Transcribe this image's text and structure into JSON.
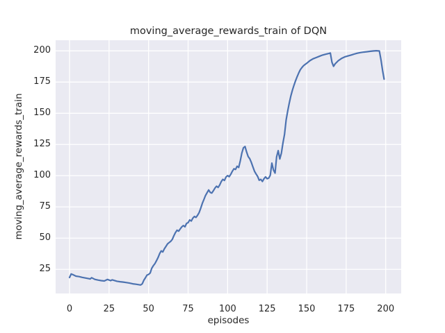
{
  "chart_data": {
    "type": "line",
    "title": "moving_average_rewards_train of DQN",
    "xlabel": "episodes",
    "ylabel": "moving_average_rewards_train",
    "x_ticks": [
      0,
      25,
      50,
      75,
      100,
      125,
      150,
      175,
      200
    ],
    "y_ticks": [
      25,
      50,
      75,
      100,
      125,
      150,
      175,
      200
    ],
    "xlim": [
      -8.8,
      209.8
    ],
    "ylim": [
      5.7,
      208.5
    ],
    "grid": true,
    "legend": "none",
    "style": {
      "figure_bg": "#ffffff",
      "axes_bg": "#eaeaf2",
      "grid_color": "#ffffff",
      "line_color": "#4c72b0",
      "text_color": "#262626",
      "line_width": 2.2
    },
    "series": [
      {
        "name": "moving_average_rewards_train",
        "points": [
          [
            0,
            18.5
          ],
          [
            1,
            21.3
          ],
          [
            2,
            20.8
          ],
          [
            4,
            19.6
          ],
          [
            6,
            19.2
          ],
          [
            8,
            18.6
          ],
          [
            10,
            18.1
          ],
          [
            12,
            17.6
          ],
          [
            13,
            17.3
          ],
          [
            14,
            18.3
          ],
          [
            16,
            17.0
          ],
          [
            18,
            16.4
          ],
          [
            20,
            16.0
          ],
          [
            22,
            15.7
          ],
          [
            24,
            16.9
          ],
          [
            26,
            16.0
          ],
          [
            27,
            16.6
          ],
          [
            28,
            16.2
          ],
          [
            30,
            15.5
          ],
          [
            32,
            15.1
          ],
          [
            34,
            14.8
          ],
          [
            36,
            14.4
          ],
          [
            38,
            14.0
          ],
          [
            40,
            13.4
          ],
          [
            42,
            13.1
          ],
          [
            44,
            12.7
          ],
          [
            45,
            12.5
          ],
          [
            46,
            13.4
          ],
          [
            47,
            16.3
          ],
          [
            48,
            18.2
          ],
          [
            49,
            20.4
          ],
          [
            50,
            20.9
          ],
          [
            51,
            22.1
          ],
          [
            52,
            25.8
          ],
          [
            53,
            27.9
          ],
          [
            54,
            29.6
          ],
          [
            55,
            32.0
          ],
          [
            56,
            34.4
          ],
          [
            57,
            37.6
          ],
          [
            58,
            39.8
          ],
          [
            59,
            38.9
          ],
          [
            60,
            41.5
          ],
          [
            61,
            43.4
          ],
          [
            62,
            45.4
          ],
          [
            63,
            46.4
          ],
          [
            64,
            47.4
          ],
          [
            65,
            49.0
          ],
          [
            66,
            52.0
          ],
          [
            67,
            54.4
          ],
          [
            68,
            56.4
          ],
          [
            69,
            55.6
          ],
          [
            70,
            57.4
          ],
          [
            71,
            59.0
          ],
          [
            72,
            60.1
          ],
          [
            73,
            59.1
          ],
          [
            74,
            61.8
          ],
          [
            75,
            62.4
          ],
          [
            76,
            64.6
          ],
          [
            77,
            63.7
          ],
          [
            78,
            66.0
          ],
          [
            79,
            67.4
          ],
          [
            80,
            66.6
          ],
          [
            81,
            68.4
          ],
          [
            82,
            70.5
          ],
          [
            83,
            74.0
          ],
          [
            84,
            77.9
          ],
          [
            85,
            81.0
          ],
          [
            86,
            84.1
          ],
          [
            87,
            86.4
          ],
          [
            88,
            88.6
          ],
          [
            89,
            86.6
          ],
          [
            90,
            86.1
          ],
          [
            91,
            88.0
          ],
          [
            92,
            90.1
          ],
          [
            93,
            91.6
          ],
          [
            94,
            90.6
          ],
          [
            95,
            92.6
          ],
          [
            96,
            95.4
          ],
          [
            97,
            97.1
          ],
          [
            98,
            96.2
          ],
          [
            99,
            99.0
          ],
          [
            100,
            100.1
          ],
          [
            101,
            99.2
          ],
          [
            102,
            101.1
          ],
          [
            103,
            103.6
          ],
          [
            104,
            105.6
          ],
          [
            105,
            105.0
          ],
          [
            106,
            107.6
          ],
          [
            107,
            106.6
          ],
          [
            108,
            112.0
          ],
          [
            109,
            118.1
          ],
          [
            110,
            122.4
          ],
          [
            111,
            123.4
          ],
          [
            112,
            119.1
          ],
          [
            113,
            115.4
          ],
          [
            114,
            113.6
          ],
          [
            115,
            110.6
          ],
          [
            116,
            107.1
          ],
          [
            117,
            103.6
          ],
          [
            118,
            101.4
          ],
          [
            119,
            99.4
          ],
          [
            120,
            96.4
          ],
          [
            121,
            97.1
          ],
          [
            122,
            95.4
          ],
          [
            123,
            97.6
          ],
          [
            124,
            99.1
          ],
          [
            125,
            97.6
          ],
          [
            126,
            98.1
          ],
          [
            127,
            100.4
          ],
          [
            128,
            110.1
          ],
          [
            129,
            104.6
          ],
          [
            130,
            102.1
          ],
          [
            131,
            115.1
          ],
          [
            132,
            120.1
          ],
          [
            133,
            113.4
          ],
          [
            134,
            118.1
          ],
          [
            135,
            126.1
          ],
          [
            136,
            133.1
          ],
          [
            137,
            144.6
          ],
          [
            138,
            151.9
          ],
          [
            139,
            158.1
          ],
          [
            140,
            163.9
          ],
          [
            141,
            168.6
          ],
          [
            142,
            172.6
          ],
          [
            143,
            176.1
          ],
          [
            144,
            179.4
          ],
          [
            145,
            182.4
          ],
          [
            146,
            184.9
          ],
          [
            147,
            186.6
          ],
          [
            148,
            188.1
          ],
          [
            149,
            189.1
          ],
          [
            150,
            190.0
          ],
          [
            152,
            192.1
          ],
          [
            154,
            193.6
          ],
          [
            156,
            194.6
          ],
          [
            158,
            195.6
          ],
          [
            160,
            196.6
          ],
          [
            162,
            197.3
          ],
          [
            164,
            197.9
          ],
          [
            165,
            198.3
          ],
          [
            166,
            190.9
          ],
          [
            167,
            187.6
          ],
          [
            168,
            189.6
          ],
          [
            170,
            192.1
          ],
          [
            172,
            193.9
          ],
          [
            174,
            195.1
          ],
          [
            176,
            195.9
          ],
          [
            178,
            196.6
          ],
          [
            180,
            197.4
          ],
          [
            182,
            198.1
          ],
          [
            184,
            198.6
          ],
          [
            186,
            199.0
          ],
          [
            188,
            199.3
          ],
          [
            190,
            199.6
          ],
          [
            192,
            199.9
          ],
          [
            194,
            200.1
          ],
          [
            196,
            199.9
          ],
          [
            197,
            192.9
          ],
          [
            198,
            184.4
          ],
          [
            199,
            177.4
          ]
        ]
      }
    ]
  }
}
